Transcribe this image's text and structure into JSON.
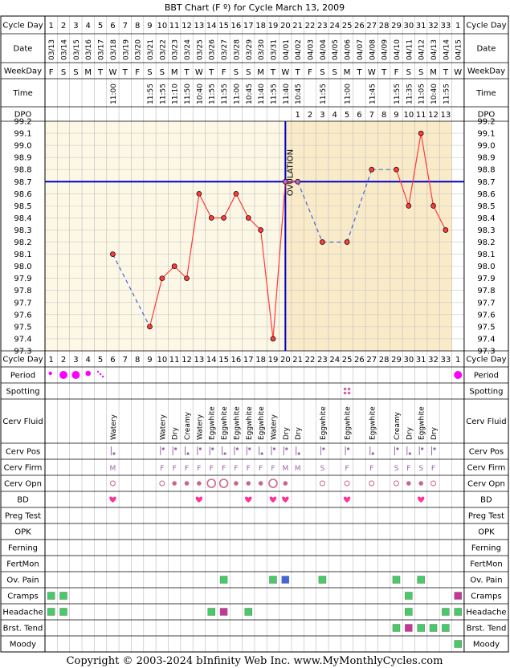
{
  "header": {
    "title": "BBT Chart (F º) for Cycle March 13, 2009",
    "copyright": "Copyright © 2003-2024 bInfinity Web Inc.    www.MyMonthlyCycles.com"
  },
  "colors": {
    "temp_line": "#ff3a3a",
    "temp_point_fill": "#ff3a3a",
    "coverline": "#0000c8",
    "ovulation_line": "#0000c8",
    "prev_bg": "#fdf8e6",
    "post_bg": "#faebc8",
    "grid": "#cccccc",
    "heart": "#ff3399",
    "period": "#ff00ff",
    "green": "#44cc66",
    "purple": "#cc3399",
    "blue": "#4466dd"
  },
  "row_labels": {
    "cycle_day": "Cycle Day",
    "date": "Date",
    "weekday": "WeekDay",
    "time": "Time",
    "dpo": "DPO",
    "period": "Period",
    "spotting": "Spotting",
    "cerv_fluid": "Cerv Fluid",
    "cerv_pos": "Cerv Pos",
    "cerv_firm": "Cerv Firm",
    "cerv_opn": "Cerv Opn",
    "bd": "BD",
    "preg_test": "Preg Test",
    "opk": "OPK",
    "ferning": "Ferning",
    "fertmon": "FertMon",
    "ov_pain": "Ov. Pain",
    "cramps": "Cramps",
    "headache": "Headache",
    "brst_tend": "Brst. Tend",
    "moody": "Moody"
  },
  "ovulation_label": "OVULATION",
  "days": {
    "cycle_day": [
      "1",
      "2",
      "3",
      "4",
      "5",
      "6",
      "7",
      "8",
      "9",
      "10",
      "11",
      "12",
      "13",
      "14",
      "15",
      "16",
      "17",
      "18",
      "19",
      "20",
      "21",
      "22",
      "23",
      "24",
      "25",
      "26",
      "27",
      "28",
      "29",
      "30",
      "31",
      "32",
      "33",
      "1"
    ],
    "date": [
      "03/13",
      "03/14",
      "03/15",
      "03/16",
      "03/17",
      "03/18",
      "03/19",
      "03/20",
      "03/21",
      "03/22",
      "03/23",
      "03/24",
      "03/25",
      "03/26",
      "03/27",
      "03/28",
      "03/29",
      "03/30",
      "03/31",
      "04/01",
      "04/02",
      "04/03",
      "04/04",
      "04/05",
      "04/06",
      "04/07",
      "04/08",
      "04/09",
      "04/10",
      "04/11",
      "04/12",
      "04/13",
      "04/14",
      "04/15"
    ],
    "weekday": [
      "F",
      "S",
      "S",
      "M",
      "T",
      "W",
      "T",
      "F",
      "S",
      "S",
      "M",
      "T",
      "W",
      "T",
      "F",
      "S",
      "S",
      "M",
      "T",
      "W",
      "T",
      "F",
      "S",
      "S",
      "M",
      "T",
      "W",
      "T",
      "F",
      "S",
      "S",
      "M",
      "T",
      "W"
    ],
    "time": [
      "",
      "",
      "",
      "",
      "",
      "11:00",
      "",
      "",
      "11:55",
      "11:55",
      "11:10",
      "11:50",
      "10:40",
      "11:55",
      "11:55",
      "11:00",
      "10:45",
      "11:40",
      "11:55",
      "11:40",
      "10:45",
      "",
      "11:55",
      "",
      "11:00",
      "",
      "11:45",
      "",
      "11:55",
      "11:35",
      "11:05",
      "10:40",
      "11:55",
      ""
    ],
    "dpo": [
      "",
      "",
      "",
      "",
      "",
      "",
      "",
      "",
      "",
      "",
      "",
      "",
      "",
      "",
      "",
      "",
      "",
      "",
      "",
      "",
      "1",
      "2",
      "3",
      "4",
      "5",
      "6",
      "7",
      "8",
      "9",
      "10",
      "11",
      "12",
      "13",
      ""
    ],
    "cerv_fluid": [
      "",
      "",
      "",
      "",
      "",
      "Watery",
      "",
      "",
      "",
      "Watery",
      "Dry",
      "Creamy",
      "Watery",
      "Eggwhite",
      "Eggwhite",
      "Eggwhite",
      "Eggwhite",
      "Eggwhite",
      "Watery",
      "Dry",
      "Dry",
      "",
      "Eggwhite",
      "",
      "Eggwhite",
      "",
      "Eggwhite",
      "",
      "Creamy",
      "Dry",
      "Eggwhite",
      "Dry",
      "",
      ""
    ],
    "cerv_firm": [
      "",
      "",
      "",
      "",
      "",
      "M",
      "",
      "",
      "",
      "F",
      "F",
      "F",
      "F",
      "F",
      "F",
      "F",
      "F",
      "F",
      "F",
      "M",
      "M",
      "",
      "S",
      "",
      "F",
      "",
      "F",
      "",
      "S",
      "F",
      "S",
      "F",
      "",
      ""
    ]
  },
  "chart_data": {
    "type": "line",
    "title": "BBT Chart (F º) for Cycle March 13, 2009",
    "ylim": [
      97.3,
      99.2
    ],
    "yticks": [
      "99.2",
      "99.1",
      "99.0",
      "98.9",
      "98.8",
      "98.7",
      "98.6",
      "98.5",
      "98.4",
      "98.3",
      "98.2",
      "98.1",
      "98.0",
      "97.9",
      "97.8",
      "97.7",
      "97.6",
      "97.5",
      "97.4",
      "97.3"
    ],
    "x": [
      1,
      2,
      3,
      4,
      5,
      6,
      7,
      8,
      9,
      10,
      11,
      12,
      13,
      14,
      15,
      16,
      17,
      18,
      19,
      20,
      21,
      22,
      23,
      24,
      25,
      26,
      27,
      28,
      29,
      30,
      31,
      32,
      33,
      34
    ],
    "temps": [
      null,
      null,
      null,
      null,
      null,
      98.1,
      null,
      null,
      97.5,
      97.9,
      98.0,
      97.9,
      98.6,
      98.4,
      98.4,
      98.6,
      98.4,
      98.3,
      97.4,
      98.7,
      98.7,
      null,
      98.2,
      null,
      98.2,
      null,
      98.8,
      null,
      98.8,
      98.5,
      99.1,
      98.5,
      98.3,
      null
    ],
    "coverline": 98.7,
    "ovulation_cycle_day": 20,
    "grid": true
  },
  "symbols": {
    "period": [
      [
        1,
        "dot-small"
      ],
      [
        2,
        "dot-large"
      ],
      [
        3,
        "dot-large"
      ],
      [
        4,
        "dot-medium"
      ],
      [
        5,
        "spots"
      ],
      [
        34,
        "dot-large"
      ]
    ],
    "spotting": [
      [
        25,
        "spots-4"
      ]
    ],
    "cerv_pos": [
      6,
      10,
      11,
      12,
      13,
      14,
      15,
      16,
      17,
      18,
      19,
      20,
      21,
      23,
      25,
      27,
      29,
      30,
      31,
      32
    ],
    "cerv_opn": [
      [
        6,
        "open-small"
      ],
      [
        10,
        "open-small"
      ],
      [
        11,
        "dot"
      ],
      [
        12,
        "dot"
      ],
      [
        13,
        "dot"
      ],
      [
        14,
        "open-large"
      ],
      [
        15,
        "open-large"
      ],
      [
        16,
        "dot"
      ],
      [
        17,
        "dot"
      ],
      [
        18,
        "dot"
      ],
      [
        19,
        "open-large"
      ],
      [
        20,
        "dot"
      ],
      [
        23,
        "open-small"
      ],
      [
        25,
        "open-small"
      ],
      [
        27,
        "open-small"
      ],
      [
        29,
        "open-small"
      ],
      [
        30,
        "dot"
      ],
      [
        31,
        "dot"
      ],
      [
        32,
        "open-small"
      ]
    ],
    "bd": [
      6,
      13,
      17,
      19,
      20,
      25,
      31
    ],
    "ov_pain": [
      [
        15,
        "green"
      ],
      [
        19,
        "green"
      ],
      [
        20,
        "blue"
      ],
      [
        23,
        "green"
      ],
      [
        29,
        "green"
      ],
      [
        31,
        "green"
      ]
    ],
    "cramps": [
      [
        1,
        "green"
      ],
      [
        2,
        "green"
      ],
      [
        30,
        "green"
      ],
      [
        34,
        "purple"
      ]
    ],
    "headache": [
      [
        1,
        "green"
      ],
      [
        2,
        "green"
      ],
      [
        14,
        "green"
      ],
      [
        15,
        "purple"
      ],
      [
        17,
        "green"
      ],
      [
        30,
        "green"
      ],
      [
        33,
        "green"
      ],
      [
        34,
        "green"
      ]
    ],
    "brst_tend": [
      [
        29,
        "green"
      ],
      [
        30,
        "purple"
      ],
      [
        31,
        "green"
      ],
      [
        32,
        "green"
      ],
      [
        33,
        "green"
      ]
    ],
    "moody": [
      [
        34,
        "green"
      ]
    ]
  }
}
